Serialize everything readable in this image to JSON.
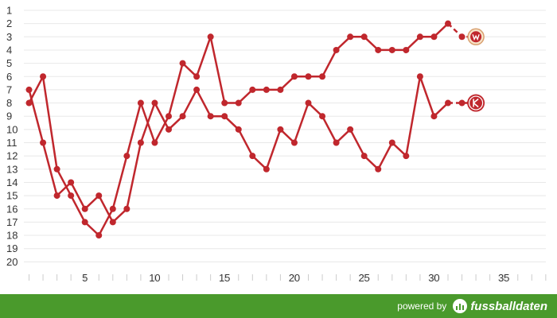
{
  "chart_data": {
    "type": "line",
    "title": "",
    "xlabel": "",
    "ylabel": "",
    "x_range": [
      1,
      38
    ],
    "x_tick_labels": [
      5,
      10,
      15,
      20,
      25,
      30,
      35
    ],
    "y_range": [
      1,
      20
    ],
    "y_inverted": true,
    "y_tick_labels": [
      1,
      2,
      3,
      4,
      5,
      6,
      7,
      8,
      9,
      10,
      11,
      12,
      13,
      14,
      15,
      16,
      17,
      18,
      19,
      20
    ],
    "grid": true,
    "line_color": "#c0272d",
    "series": [
      {
        "icon": "club-crest-wuerzburg",
        "x": [
          1,
          2,
          3,
          4,
          5,
          6,
          7,
          8,
          9,
          10,
          11,
          12,
          13,
          14,
          15,
          16,
          17,
          18,
          19,
          20,
          21,
          22,
          23,
          24,
          25,
          26,
          27,
          28,
          29,
          30,
          31,
          32,
          33
        ],
        "values": [
          8,
          6,
          13,
          15,
          17,
          18,
          16,
          12,
          8,
          11,
          9,
          5,
          6,
          3,
          8,
          8,
          7,
          7,
          7,
          6,
          6,
          6,
          4,
          3,
          3,
          4,
          4,
          4,
          3,
          3,
          2,
          3,
          3
        ]
      },
      {
        "icon": "club-crest-kaiserslautern",
        "x": [
          1,
          2,
          3,
          4,
          5,
          6,
          7,
          8,
          9,
          10,
          11,
          12,
          13,
          14,
          15,
          16,
          17,
          18,
          19,
          20,
          21,
          22,
          23,
          24,
          25,
          26,
          27,
          28,
          29,
          30,
          31,
          32,
          33
        ],
        "values": [
          7,
          11,
          15,
          14,
          16,
          15,
          17,
          16,
          11,
          8,
          10,
          9,
          7,
          9,
          9,
          10,
          12,
          13,
          10,
          11,
          8,
          9,
          11,
          10,
          12,
          13,
          11,
          12,
          6,
          9,
          8,
          8,
          8
        ]
      }
    ]
  },
  "footer": {
    "powered_by": "powered by",
    "brand": "fussballdaten",
    "bg_color": "#4a9a2c"
  }
}
